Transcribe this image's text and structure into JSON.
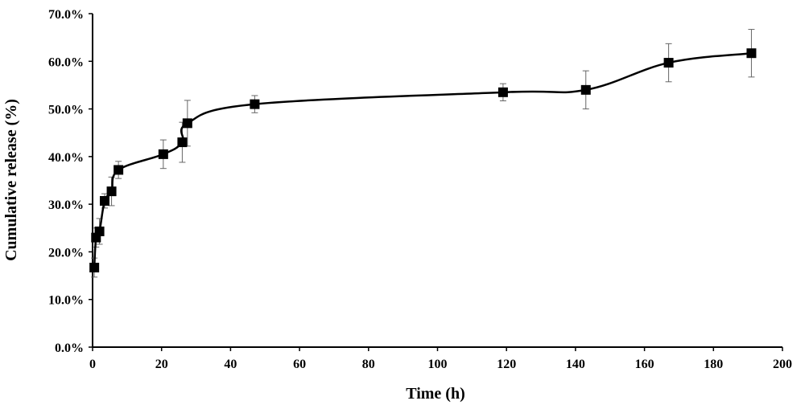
{
  "chart_data": {
    "type": "line",
    "xlabel": "Time (h)",
    "ylabel": "Cumulative release (%)",
    "xlim": [
      0,
      200
    ],
    "ylim": [
      0,
      70
    ],
    "x_ticks": [
      0,
      20,
      40,
      60,
      80,
      100,
      120,
      140,
      160,
      180,
      200
    ],
    "y_ticks": [
      0,
      10,
      20,
      30,
      40,
      50,
      60,
      70
    ],
    "y_tick_format": "percent_one_decimal",
    "grid": false,
    "legend": "none",
    "series": [
      {
        "color": "#000000",
        "marker": "square",
        "smooth": true,
        "points": [
          {
            "x": 0.5,
            "y": 16.7,
            "err": 2.0
          },
          {
            "x": 1,
            "y": 23.0,
            "err": 2.0
          },
          {
            "x": 2,
            "y": 24.3,
            "err": 2.7
          },
          {
            "x": 3.5,
            "y": 30.7,
            "err": 1.5
          },
          {
            "x": 5.5,
            "y": 32.7,
            "err": 3.0
          },
          {
            "x": 7.5,
            "y": 37.2,
            "err": 1.8
          },
          {
            "x": 20.5,
            "y": 40.5,
            "err": 3.0
          },
          {
            "x": 26,
            "y": 43.0,
            "err": 4.2
          },
          {
            "x": 27.5,
            "y": 47.0,
            "err": 4.8
          },
          {
            "x": 47,
            "y": 51.0,
            "err": 1.8
          },
          {
            "x": 119,
            "y": 53.5,
            "err": 1.8
          },
          {
            "x": 143,
            "y": 54.0,
            "err": 4.0
          },
          {
            "x": 167,
            "y": 59.7,
            "err": 4.0
          },
          {
            "x": 191,
            "y": 61.7,
            "err": 5.0
          }
        ]
      }
    ]
  }
}
